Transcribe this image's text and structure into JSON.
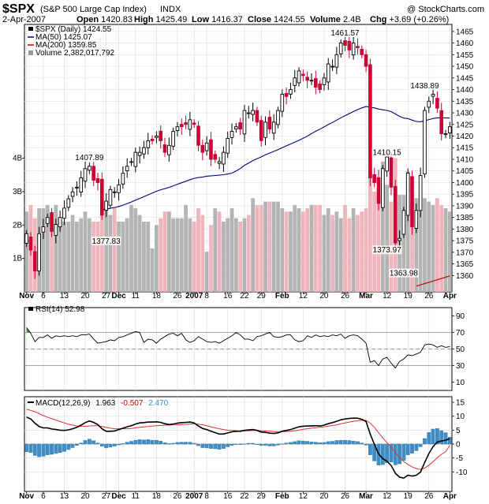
{
  "header": {
    "symbol": "$SPX",
    "name": "(S&P 500 Large Cap Index)",
    "exchange": "INDX",
    "watermark": "@ StockCharts.com",
    "date": "2-Apr-2007",
    "stats": [
      {
        "label": "Open",
        "value": "1420.83"
      },
      {
        "label": "High",
        "value": "1425.49"
      },
      {
        "label": "Low",
        "value": "1416.37"
      },
      {
        "label": "Close",
        "value": "1424.55"
      },
      {
        "label": "Volume",
        "value": "2.4B"
      },
      {
        "label": "Chg",
        "value": "+3.69 (+0.26%)"
      }
    ]
  },
  "legend": {
    "price": "$SPX (Daily) 1424.55",
    "ma50": "MA(50) 1425.07",
    "ma200": "MA(200) 1359.85",
    "volume": "Volume 2,382,017,792"
  },
  "rsi_label": "RSI(14) 52.98",
  "macd_label": {
    "name": "MACD(12,26,9)",
    "macd": "1.963",
    "signal": "-0.507",
    "hist": "2.470"
  },
  "colors": {
    "up": "#000000",
    "down": "#cc0033",
    "ma50": "#000080",
    "ma200": "#cc0000",
    "vol_up": "#b4b4b4",
    "vol_down": "#f0b4bc",
    "hist": "#3d8ec6",
    "signal": "#e03030",
    "macd": "#000000"
  },
  "chart_data": [
    {
      "type": "candlestick",
      "title": "$SPX (Daily)",
      "ylim": [
        1353,
        1468
      ],
      "yticks": [
        1360,
        1365,
        1370,
        1375,
        1380,
        1385,
        1390,
        1395,
        1400,
        1405,
        1410,
        1415,
        1420,
        1425,
        1430,
        1435,
        1440,
        1445,
        1450,
        1455,
        1460,
        1465
      ],
      "x_labels": [
        "Nov",
        "6",
        "13",
        "20",
        "27",
        "Dec",
        "11",
        "18",
        "26",
        "2007",
        "8",
        "16",
        "22",
        "29",
        "Feb",
        "12",
        "20",
        "26",
        "Mar",
        "12",
        "19",
        "26",
        "Apr"
      ],
      "close": [
        1378,
        1371,
        1362,
        1378,
        1381,
        1385,
        1379,
        1382,
        1385,
        1389,
        1393,
        1396,
        1398,
        1402,
        1406,
        1407,
        1401,
        1400,
        1386,
        1392,
        1397,
        1396,
        1399,
        1404,
        1407,
        1409,
        1413,
        1413,
        1415,
        1418,
        1418,
        1420,
        1418,
        1413,
        1416,
        1422,
        1424,
        1424,
        1425,
        1427,
        1425,
        1416,
        1413,
        1417,
        1410,
        1410,
        1409,
        1413,
        1419,
        1422,
        1424,
        1423,
        1431,
        1430,
        1431,
        1426,
        1418,
        1426,
        1423,
        1426,
        1431,
        1438,
        1437,
        1440,
        1445,
        1448,
        1446,
        1444,
        1444,
        1441,
        1440,
        1445,
        1451,
        1450,
        1455,
        1460,
        1459,
        1457,
        1460,
        1458,
        1455,
        1450,
        1402,
        1400,
        1391,
        1406,
        1411,
        1398,
        1374,
        1376,
        1388,
        1404,
        1381,
        1388,
        1403,
        1431,
        1435,
        1438,
        1432,
        1421,
        1421,
        1424
      ],
      "annotations": [
        {
          "text": "1407.89",
          "x": 15,
          "y": 1407.89
        },
        {
          "text": "1377.83",
          "x": 19,
          "y": 1377.83
        },
        {
          "text": "1461.57",
          "x": 76,
          "y": 1461.57
        },
        {
          "text": "1410.15",
          "x": 86,
          "y": 1410.15
        },
        {
          "text": "1373.97",
          "x": 86,
          "y": 1373.97
        },
        {
          "text": "1363.98",
          "x": 90,
          "y": 1363.98
        },
        {
          "text": "1438.89",
          "x": 95,
          "y": 1438.89
        }
      ],
      "series": [
        {
          "name": "MA(50)",
          "last": 1425.07
        },
        {
          "name": "MA(200)",
          "last": 1359.85
        }
      ]
    },
    {
      "type": "bar",
      "title": "Volume",
      "yticks": [
        "1B",
        "2B",
        "3B",
        "4B"
      ],
      "values": [
        2.4,
        2.6,
        2.2,
        2.5,
        2.5,
        2.6,
        2.3,
        2.6,
        2.2,
        2.1,
        2.1,
        2.3,
        2.1,
        2.2,
        2.4,
        2.2,
        2.1,
        2.1,
        2.5,
        2.6,
        2.3,
        2.5,
        2.1,
        2.1,
        2.2,
        2.6,
        2.5,
        2.3,
        2.1,
        2.1,
        1.3,
        2.0,
        2.2,
        2.4,
        2.4,
        2.2,
        2.2,
        2.2,
        2.6,
        2.2,
        2.1,
        2.5,
        2.3,
        1.2,
        2.0,
        2.5,
        2.4,
        2.1,
        2.2,
        2.5,
        2.2,
        2.1,
        2.2,
        2.3,
        2.8,
        2.6,
        2.6,
        2.7,
        2.7,
        2.7,
        2.7,
        2.5,
        2.4,
        2.4,
        2.6,
        2.5,
        2.4,
        2.5,
        2.6,
        2.6,
        2.6,
        2.3,
        2.5,
        2.3,
        2.4,
        2.2,
        2.6,
        2.2,
        2.5,
        2.3,
        2.4,
        2.5,
        3.7,
        3.0,
        2.9,
        3.9,
        3.2,
        2.7,
        4.0,
        2.9,
        2.9,
        3.6,
        2.7,
        2.8,
        2.9,
        2.8,
        2.7,
        2.6,
        2.8,
        2.6,
        2.5,
        2.4
      ]
    },
    {
      "type": "line",
      "title": "RSI(14)",
      "ylim": [
        0,
        100
      ],
      "yticks": [
        10,
        30,
        50,
        70,
        90
      ],
      "values": [
        76,
        69,
        59,
        64,
        64,
        67,
        63,
        66,
        65,
        66,
        65,
        66,
        65,
        67,
        67,
        68,
        62,
        57,
        58,
        59,
        61,
        60,
        64,
        65,
        67,
        69,
        71,
        70,
        58,
        62,
        61,
        57,
        62,
        65,
        68,
        69,
        66,
        69,
        61,
        58,
        60,
        65,
        62,
        59,
        58,
        59,
        57,
        60,
        63,
        66,
        70,
        67,
        62,
        62,
        60,
        65,
        66,
        68,
        70,
        65,
        64,
        65,
        67,
        67,
        61,
        59,
        60,
        66,
        64,
        67,
        65,
        66,
        65,
        67,
        66,
        68,
        63,
        66,
        67,
        66,
        62,
        57,
        34,
        36,
        30,
        38,
        40,
        33,
        27,
        35,
        38,
        43,
        42,
        44,
        46,
        55,
        56,
        55,
        52,
        54,
        52,
        53
      ]
    },
    {
      "type": "line",
      "title": "MACD(12,26,9)",
      "ylim": [
        -17,
        17
      ],
      "yticks": [
        -10,
        -5,
        0,
        5,
        10,
        15
      ],
      "series": [
        {
          "name": "MACD",
          "values": [
            9.7,
            9.0,
            7.5,
            6.3,
            5.8,
            5.8,
            5.4,
            5.2,
            5.0,
            4.9,
            5.1,
            5.5,
            6.0,
            6.8,
            7.7,
            8.3,
            7.8,
            7.0,
            5.5,
            4.6,
            4.6,
            4.7,
            5.2,
            5.7,
            6.2,
            6.6,
            7.2,
            7.6,
            7.7,
            7.9,
            7.9,
            8.0,
            7.8,
            7.3,
            7.0,
            7.2,
            7.5,
            7.7,
            7.8,
            7.9,
            7.6,
            6.5,
            5.6,
            5.2,
            4.6,
            4.1,
            3.6,
            3.6,
            4.0,
            4.4,
            4.6,
            4.6,
            4.9,
            5.1,
            5.2,
            4.9,
            4.3,
            4.2,
            3.9,
            3.8,
            4.0,
            4.6,
            4.9,
            5.2,
            5.7,
            6.2,
            6.4,
            6.5,
            6.5,
            6.6,
            6.5,
            6.8,
            7.3,
            7.7,
            8.2,
            8.7,
            9.0,
            9.2,
            9.3,
            9.3,
            8.9,
            8.1,
            3.6,
            -0.1,
            -3.5,
            -5.2,
            -6.2,
            -7.7,
            -10.5,
            -11.9,
            -12.2,
            -11.2,
            -11.5,
            -11.2,
            -10.1,
            -6.6,
            -3.4,
            -0.9,
            0.7,
            1.1,
            1.4,
            1.963
          ]
        },
        {
          "name": "Signal",
          "values": [
            12.5,
            12.1,
            11.6,
            10.9,
            10.2,
            9.7,
            9.1,
            8.6,
            8.1,
            7.6,
            7.1,
            6.8,
            6.5,
            6.4,
            6.4,
            6.5,
            6.6,
            6.6,
            6.3,
            6.0,
            5.7,
            5.5,
            5.5,
            5.5,
            5.5,
            5.6,
            5.8,
            6.0,
            6.2,
            6.3,
            6.5,
            6.6,
            6.7,
            6.8,
            6.8,
            6.9,
            6.9,
            7.0,
            7.1,
            7.2,
            7.3,
            7.1,
            6.9,
            6.6,
            6.2,
            5.8,
            5.5,
            5.2,
            5.0,
            4.9,
            4.8,
            4.8,
            4.8,
            4.8,
            4.9,
            4.9,
            4.8,
            4.7,
            4.6,
            4.5,
            4.4,
            4.5,
            4.5,
            4.6,
            4.8,
            5.0,
            5.3,
            5.5,
            5.7,
            5.9,
            6.0,
            6.2,
            6.4,
            6.7,
            6.9,
            7.3,
            7.6,
            7.9,
            8.2,
            8.4,
            8.5,
            8.5,
            7.5,
            6.0,
            4.1,
            2.2,
            0.5,
            -1.2,
            -3.0,
            -4.8,
            -6.3,
            -7.3,
            -8.2,
            -8.8,
            -9.1,
            -8.6,
            -7.6,
            -6.3,
            -4.9,
            -3.7,
            -2.7,
            -0.507
          ]
        },
        {
          "name": "Histogram",
          "values": [
            -2.8,
            -3.1,
            -4.1,
            -4.6,
            -4.4,
            -3.9,
            -3.7,
            -3.4,
            -3.1,
            -2.7,
            -2.0,
            -1.3,
            -0.5,
            0.4,
            1.3,
            1.8,
            1.2,
            0.4,
            -0.8,
            -1.4,
            -1.1,
            -0.8,
            -0.3,
            0.2,
            0.7,
            1.0,
            1.4,
            1.6,
            1.5,
            1.6,
            1.4,
            1.4,
            1.1,
            0.5,
            0.2,
            0.3,
            0.6,
            0.7,
            0.7,
            0.7,
            0.3,
            -0.6,
            -1.3,
            -1.4,
            -1.6,
            -1.7,
            -1.9,
            -1.6,
            -1.0,
            -0.5,
            -0.2,
            -0.2,
            0.1,
            0.3,
            0.3,
            0.0,
            -0.5,
            -0.5,
            -0.7,
            -0.7,
            -0.4,
            0.1,
            0.4,
            0.6,
            0.9,
            1.2,
            1.1,
            1.0,
            0.8,
            0.7,
            0.5,
            0.6,
            0.9,
            1.0,
            1.3,
            1.4,
            1.4,
            1.3,
            1.1,
            0.9,
            0.4,
            -0.4,
            -3.9,
            -6.1,
            -7.6,
            -7.4,
            -6.7,
            -6.5,
            -7.5,
            -7.1,
            -5.9,
            -3.9,
            -3.3,
            -2.4,
            -1.0,
            2.0,
            4.2,
            5.4,
            5.6,
            4.8,
            4.1,
            2.47
          ]
        }
      ]
    }
  ]
}
